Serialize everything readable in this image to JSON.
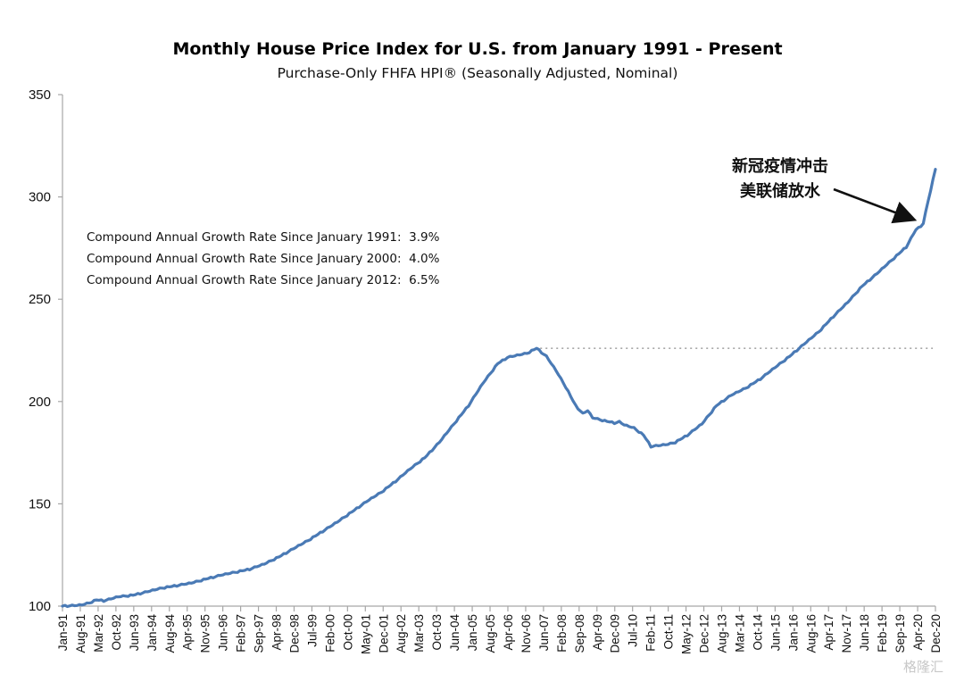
{
  "chart_data": {
    "type": "line",
    "title": "Monthly House Price Index for U.S. from January 1991 - Present",
    "subtitle": "Purchase-Only FHFA HPI® (Seasonally Adjusted, Nominal)",
    "xlabel": "",
    "ylabel": "",
    "ylim": [
      100,
      350
    ],
    "yticks": [
      100,
      150,
      200,
      250,
      300,
      350
    ],
    "x_start": "Jan-91",
    "x_end": "Dec-20",
    "x_tick_interval_months": 7,
    "xtick_labels": [
      "Jan-91",
      "Aug-91",
      "Mar-92",
      "Oct-92",
      "Jun-93",
      "Jan-94",
      "Aug-94",
      "Apr-95",
      "Nov-95",
      "Jun-96",
      "Feb-97",
      "Sep-97",
      "Apr-98",
      "Dec-98",
      "Jul-99",
      "Feb-00",
      "Oct-00",
      "May-01",
      "Dec-01",
      "Aug-02",
      "Mar-03",
      "Oct-03",
      "Jun-04",
      "Jan-05",
      "Aug-05",
      "Apr-06",
      "Nov-06",
      "Jun-07",
      "Feb-08",
      "Sep-08",
      "Apr-09",
      "Dec-09",
      "Jul-10",
      "Feb-11",
      "Oct-11",
      "May-12",
      "Dec-12",
      "Aug-13",
      "Mar-14",
      "Oct-14",
      "Jun-15",
      "Jan-16",
      "Aug-16",
      "Apr-17",
      "Nov-17",
      "Jun-18",
      "Feb-19",
      "Sep-19",
      "Apr-20",
      "Dec-20"
    ],
    "grid": false,
    "legend": "none",
    "series": [
      {
        "name": "Purchase-Only FHFA HPI",
        "color": "#4a7ab5",
        "points": [
          [
            "1991-01",
            100.0
          ],
          [
            "1991-06",
            100.2
          ],
          [
            "1991-09",
            100.5
          ],
          [
            "1991-12",
            101.5
          ],
          [
            "1992-03",
            103.0
          ],
          [
            "1992-06",
            102.6
          ],
          [
            "1992-09",
            103.5
          ],
          [
            "1992-12",
            104.5
          ],
          [
            "1993-06",
            105.3
          ],
          [
            "1993-12",
            107.0
          ],
          [
            "1994-06",
            108.8
          ],
          [
            "1994-12",
            110.0
          ],
          [
            "1995-06",
            111.2
          ],
          [
            "1995-12",
            113.2
          ],
          [
            "1996-06",
            115.0
          ],
          [
            "1996-12",
            116.5
          ],
          [
            "1997-06",
            118.0
          ],
          [
            "1997-12",
            120.5
          ],
          [
            "1998-06",
            124.0
          ],
          [
            "1998-12",
            128.0
          ],
          [
            "1999-06",
            132.0
          ],
          [
            "1999-12",
            136.5
          ],
          [
            "2000-06",
            141.0
          ],
          [
            "2000-12",
            146.0
          ],
          [
            "2001-06",
            151.0
          ],
          [
            "2001-12",
            155.5
          ],
          [
            "2002-06",
            161.0
          ],
          [
            "2002-12",
            167.0
          ],
          [
            "2003-06",
            172.5
          ],
          [
            "2003-12",
            180.0
          ],
          [
            "2004-06",
            189.0
          ],
          [
            "2004-12",
            198.0
          ],
          [
            "2005-06",
            209.0
          ],
          [
            "2005-12",
            218.5
          ],
          [
            "2006-04",
            221.5
          ],
          [
            "2006-08",
            222.5
          ],
          [
            "2006-12",
            223.5
          ],
          [
            "2007-04",
            226.0
          ],
          [
            "2007-08",
            222.0
          ],
          [
            "2007-12",
            215.0
          ],
          [
            "2008-04",
            207.0
          ],
          [
            "2008-08",
            198.0
          ],
          [
            "2008-11",
            194.0
          ],
          [
            "2009-01",
            195.5
          ],
          [
            "2009-03",
            192.0
          ],
          [
            "2009-08",
            190.5
          ],
          [
            "2009-12",
            189.5
          ],
          [
            "2010-02",
            190.0
          ],
          [
            "2010-04",
            188.5
          ],
          [
            "2010-08",
            187.0
          ],
          [
            "2010-12",
            183.5
          ],
          [
            "2011-03",
            178.0
          ],
          [
            "2011-07",
            178.5
          ],
          [
            "2011-10",
            179.0
          ],
          [
            "2012-01",
            180.0
          ],
          [
            "2012-06",
            183.5
          ],
          [
            "2012-12",
            189.0
          ],
          [
            "2013-06",
            198.0
          ],
          [
            "2013-12",
            203.0
          ],
          [
            "2014-06",
            206.5
          ],
          [
            "2014-12",
            211.0
          ],
          [
            "2015-06",
            216.5
          ],
          [
            "2015-12",
            222.0
          ],
          [
            "2016-06",
            228.0
          ],
          [
            "2016-12",
            234.0
          ],
          [
            "2017-06",
            241.5
          ],
          [
            "2017-12",
            248.5
          ],
          [
            "2018-06",
            256.5
          ],
          [
            "2018-12",
            262.5
          ],
          [
            "2019-06",
            269.0
          ],
          [
            "2019-12",
            275.5
          ],
          [
            "2020-04",
            284.0
          ],
          [
            "2020-06",
            285.5
          ],
          [
            "2020-07",
            287.0
          ],
          [
            "2020-09",
            298.0
          ],
          [
            "2020-12",
            313.5
          ]
        ]
      }
    ],
    "reference_line": {
      "value": 226,
      "from": "2007-04",
      "to": "2020-12",
      "style": "dotted",
      "color": "#a6a6a6"
    },
    "annotations": [
      {
        "lines": [
          "Compound Annual Growth Rate Since January 1991:  3.9%",
          "Compound Annual Growth Rate Since January 2000:  4.0%",
          "Compound Annual Growth Rate Since January 2012:  6.5%"
        ]
      },
      {
        "lines": [
          "新冠疫情冲击",
          "美联储放水"
        ],
        "arrow_to": "2020-07"
      }
    ],
    "watermark": "格隆汇"
  }
}
